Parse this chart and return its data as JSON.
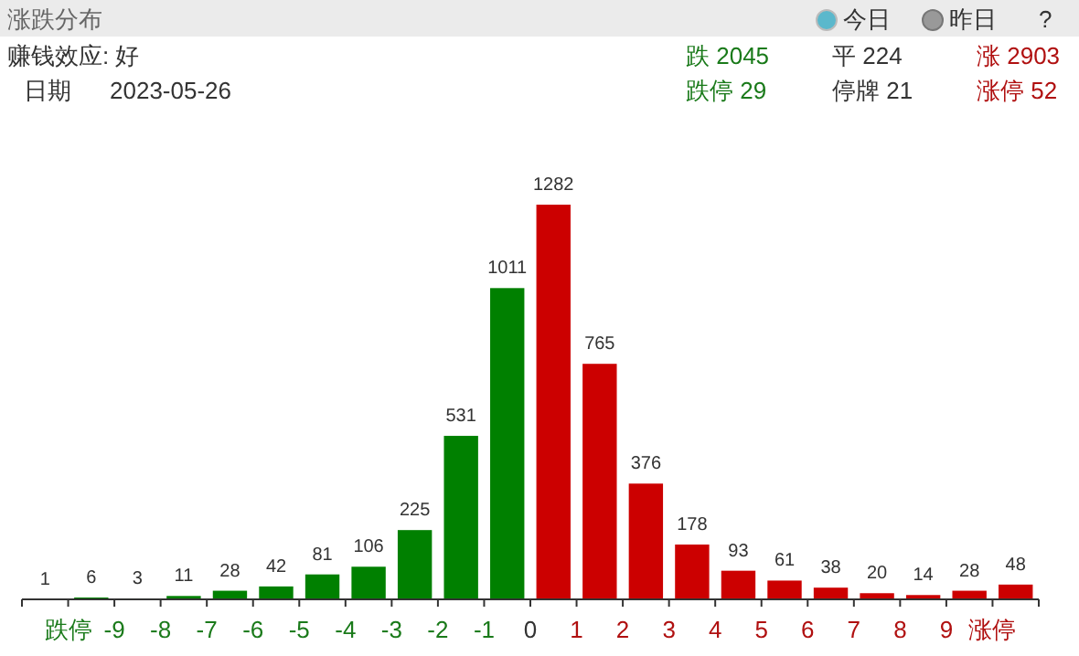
{
  "chart_data": {
    "type": "bar",
    "title": "涨跌分布",
    "x": [
      -10.5,
      -9.5,
      -8.5,
      -7.5,
      -6.5,
      -5.5,
      -4.5,
      -3.5,
      -2.5,
      -1.5,
      -0.5,
      0.5,
      1.5,
      2.5,
      3.5,
      4.5,
      5.5,
      6.5,
      7.5,
      8.5,
      9.5,
      10.5
    ],
    "values": [
      1,
      6,
      3,
      11,
      28,
      42,
      81,
      106,
      225,
      531,
      1011,
      1282,
      765,
      376,
      178,
      93,
      61,
      38,
      20,
      14,
      28,
      48
    ],
    "colors": [
      "#008000",
      "#008000",
      "#008000",
      "#008000",
      "#008000",
      "#008000",
      "#008000",
      "#008000",
      "#008000",
      "#008000",
      "#008000",
      "#cc0000",
      "#cc0000",
      "#cc0000",
      "#cc0000",
      "#cc0000",
      "#cc0000",
      "#cc0000",
      "#cc0000",
      "#cc0000",
      "#cc0000",
      "#cc0000"
    ],
    "xlim": [
      -11,
      11
    ],
    "xticks": [
      {
        "value": -11,
        "label": null
      },
      {
        "value": -10,
        "label": "跌停"
      },
      -9,
      -8,
      -7,
      -6,
      -5,
      -4,
      -3,
      -2,
      -1,
      0,
      1,
      2,
      3,
      4,
      5,
      6,
      7,
      8,
      9,
      {
        "value": 10,
        "label": "涨停"
      },
      {
        "value": 11,
        "label": null
      }
    ],
    "data_labels": true,
    "tick_labels": "x",
    "annotations": [
      "今日",
      "昨日",
      "?",
      "赚钱效应: 好",
      "日期",
      "2023-05-26",
      "跌 2045",
      "平 224",
      "涨 2903",
      "跌停 29",
      "停牌 21",
      "涨停 52"
    ]
  }
}
